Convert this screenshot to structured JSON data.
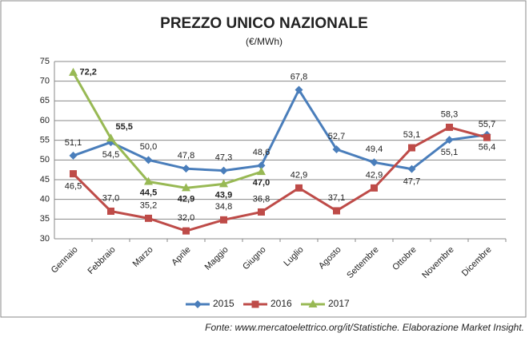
{
  "chart_data": {
    "type": "line",
    "title": "PREZZO UNICO NAZIONALE",
    "subtitle": "(€/MWh)",
    "categories": [
      "Gennaio",
      "Febbraio",
      "Marzo",
      "Aprile",
      "Maggio",
      "Giugno",
      "Luglio",
      "Agosto",
      "Settembre",
      "Ottobre",
      "Novembre",
      "Dicembre"
    ],
    "series": [
      {
        "name": "2015",
        "color": "#4a7ebb",
        "marker": "diamond",
        "values": [
          51.1,
          54.5,
          50.0,
          47.8,
          47.3,
          48.6,
          67.8,
          52.7,
          49.4,
          47.7,
          55.1,
          56.4
        ],
        "value_labels": [
          "51,1",
          "54,5",
          "50,0",
          "47,8",
          "47,3",
          "48,6",
          "67,8",
          "52,7",
          "49,4",
          "47,7",
          "55,1",
          "56,4"
        ]
      },
      {
        "name": "2016",
        "color": "#be4b48",
        "marker": "square",
        "values": [
          46.5,
          37.0,
          35.2,
          32.0,
          34.8,
          36.8,
          42.9,
          37.1,
          42.9,
          53.1,
          58.3,
          55.7
        ],
        "value_labels": [
          "46,5",
          "37,0",
          "35,2",
          "32,0",
          "34,8",
          "36,8",
          "42,9",
          "37,1",
          "42,9",
          "53,1",
          "58,3",
          "55,7"
        ]
      },
      {
        "name": "2017",
        "color": "#98b954",
        "marker": "triangle",
        "values": [
          72.2,
          55.5,
          44.5,
          42.9,
          43.9,
          47.0,
          null,
          null,
          null,
          null,
          null,
          null
        ],
        "value_labels": [
          "72,2",
          "55,5",
          "44,5",
          "42,9",
          "43,9",
          "47,0",
          null,
          null,
          null,
          null,
          null,
          null
        ]
      }
    ],
    "ylim": [
      30,
      75
    ],
    "yticks": [
      30,
      35,
      40,
      45,
      50,
      55,
      60,
      65,
      70,
      75
    ],
    "grid": true,
    "legend": "bottom",
    "source": "Fonte: www.mercatoelettrico.org/it/Statistiche. Elaborazione Market Insight."
  }
}
